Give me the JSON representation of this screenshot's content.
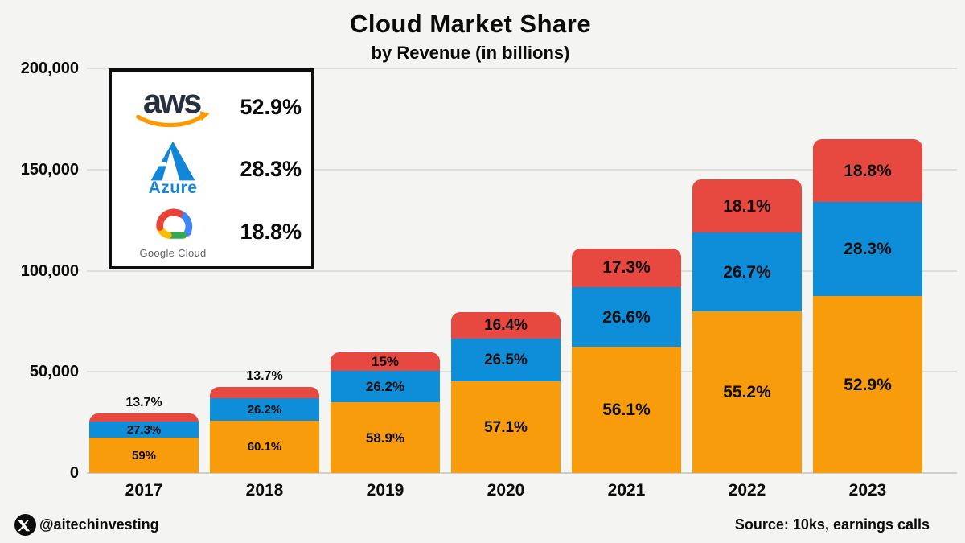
{
  "chart_data": {
    "type": "bar",
    "stacked": true,
    "title": "Cloud Market Share",
    "subtitle": "by Revenue (in billions)",
    "categories": [
      "2017",
      "2018",
      "2019",
      "2020",
      "2021",
      "2022",
      "2023"
    ],
    "ylim": [
      0,
      200000
    ],
    "yticks": [
      {
        "value": 0,
        "label": "0"
      },
      {
        "value": 50000,
        "label": "50,000"
      },
      {
        "value": 100000,
        "label": "100,000"
      },
      {
        "value": 150000,
        "label": "150,000"
      },
      {
        "value": 200000,
        "label": "200,000"
      }
    ],
    "totals": [
      29500,
      42700,
      59500,
      79500,
      111000,
      145000,
      165000
    ],
    "series": [
      {
        "name": "AWS",
        "color": "#F99C0B",
        "share_pct": [
          59,
          60.1,
          58.9,
          57.1,
          56.1,
          55.2,
          52.9
        ],
        "labels": [
          "59%",
          "60.1%",
          "58.9%",
          "57.1%",
          "56.1%",
          "55.2%",
          "52.9%"
        ]
      },
      {
        "name": "Azure",
        "color": "#0E8ED9",
        "share_pct": [
          27.3,
          26.2,
          26.2,
          26.5,
          26.6,
          26.7,
          28.3
        ],
        "labels": [
          "27.3%",
          "26.2%",
          "26.2%",
          "26.5%",
          "26.6%",
          "26.7%",
          "28.3%"
        ]
      },
      {
        "name": "Google Cloud",
        "color": "#E74840",
        "share_pct": [
          13.7,
          13.7,
          15,
          16.4,
          17.3,
          18.1,
          18.8
        ],
        "labels": [
          "13.7%",
          "13.7%",
          "15%",
          "16.4%",
          "17.3%",
          "18.1%",
          "18.8%"
        ]
      }
    ],
    "grid": true,
    "legend_position": "top-left"
  },
  "legend": {
    "items": [
      {
        "name": "AWS",
        "icon": "aws-logo",
        "logo_text": "aws",
        "share": "52.9%"
      },
      {
        "name": "Azure",
        "icon": "azure-logo",
        "wordmark": "Azure",
        "share": "28.3%"
      },
      {
        "name": "Google Cloud",
        "icon": "google-cloud-logo",
        "wordmark": "Google Cloud",
        "share": "18.8%"
      }
    ]
  },
  "footer": {
    "handle": "@aitechinvesting",
    "source": "Source: 10ks, earnings calls"
  },
  "colors": {
    "aws_bar": "#F99C0B",
    "azure_bar": "#0E8ED9",
    "google_bar": "#E74840",
    "background": "#F4F4F2",
    "aws_text": "#252F3E",
    "aws_smile": "#FF9900",
    "azure_blue": "#1287D9",
    "google_red": "#EA4335",
    "google_blue": "#4285F4",
    "google_green": "#34A853",
    "google_yellow": "#FBBC05",
    "gridline": "#DDDDDB",
    "text": "#0B0B0B"
  }
}
